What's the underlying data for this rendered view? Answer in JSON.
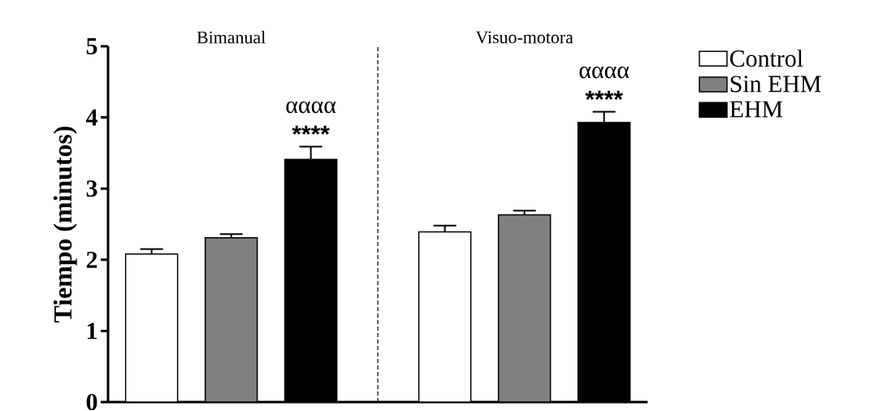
{
  "chart_data": {
    "type": "bar",
    "ylabel": "Tiempo (minutos)",
    "categories": [
      "Bimanual",
      "Visuo-motora"
    ],
    "series": [
      {
        "name": "Control",
        "color": "#ffffff",
        "values": [
          2.08,
          2.39
        ],
        "errors": [
          0.07,
          0.09
        ]
      },
      {
        "name": "Sin EHM",
        "color": "#808080",
        "values": [
          2.31,
          2.63
        ],
        "errors": [
          0.05,
          0.06
        ]
      },
      {
        "name": "EHM",
        "color": "#000000",
        "values": [
          3.41,
          3.93
        ],
        "errors": [
          0.18,
          0.15
        ]
      }
    ],
    "ylim": [
      0,
      5
    ],
    "yticks": [
      0,
      1,
      2,
      3,
      4,
      5
    ],
    "annotations": [
      "αααα",
      "****",
      "αααα",
      "****"
    ],
    "grid": false,
    "legend": "right"
  }
}
